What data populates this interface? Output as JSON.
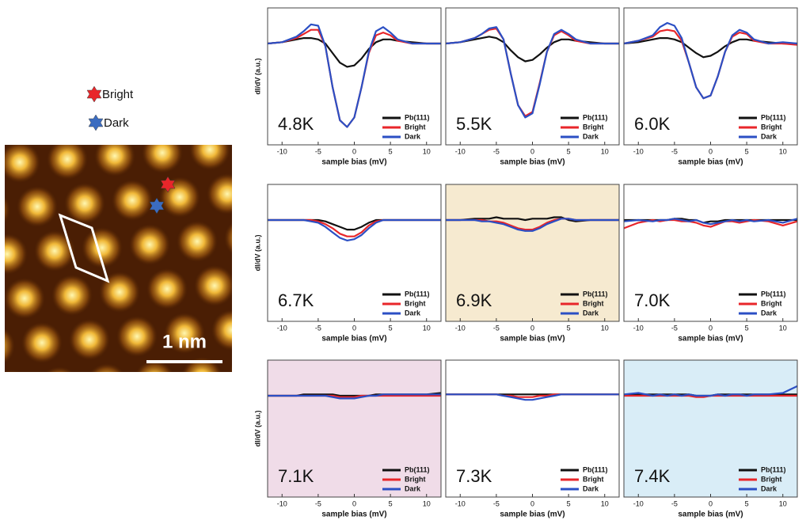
{
  "key": {
    "bright": "Bright",
    "dark": "Dark"
  },
  "image": {
    "scale_bar": "1 nm"
  },
  "chart_data": [
    {
      "type": "line",
      "title": "4.8K",
      "xlabel": "sample bias (mV)",
      "ylabel": "dI/dV (a.u.)",
      "background": "#ffffff",
      "x": [
        -12,
        -10,
        -8,
        -7,
        -6,
        -5,
        -4,
        -3,
        -2,
        -1,
        0,
        1,
        2,
        3,
        4,
        5,
        6,
        8,
        10,
        12
      ],
      "xlim": [
        -12,
        12
      ],
      "xticks": [
        -10,
        -5,
        0,
        5,
        10
      ],
      "ylim": [
        0,
        1
      ],
      "series": [
        {
          "name": "Pb(111)",
          "color": "#111111",
          "values": [
            0.74,
            0.75,
            0.77,
            0.78,
            0.78,
            0.77,
            0.74,
            0.67,
            0.6,
            0.57,
            0.58,
            0.63,
            0.7,
            0.75,
            0.77,
            0.77,
            0.76,
            0.75,
            0.74,
            0.74
          ]
        },
        {
          "name": "Bright",
          "color": "#e8262a",
          "values": [
            0.74,
            0.75,
            0.78,
            0.81,
            0.84,
            0.84,
            0.72,
            0.42,
            0.18,
            0.13,
            0.2,
            0.42,
            0.67,
            0.8,
            0.82,
            0.8,
            0.76,
            0.74,
            0.74,
            0.74
          ]
        },
        {
          "name": "Dark",
          "color": "#2b4fc4",
          "values": [
            0.74,
            0.75,
            0.79,
            0.83,
            0.88,
            0.87,
            0.72,
            0.42,
            0.18,
            0.13,
            0.2,
            0.42,
            0.68,
            0.83,
            0.86,
            0.82,
            0.77,
            0.74,
            0.74,
            0.74
          ]
        }
      ]
    },
    {
      "type": "line",
      "title": "5.5K",
      "xlabel": "sample bias (mV)",
      "background": "#ffffff",
      "x": [
        -12,
        -10,
        -8,
        -7,
        -6,
        -5,
        -4,
        -3,
        -2,
        -1,
        0,
        1,
        2,
        3,
        4,
        5,
        6,
        8,
        10,
        12
      ],
      "xlim": [
        -12,
        12
      ],
      "xticks": [
        -10,
        -5,
        0,
        5,
        10
      ],
      "ylim": [
        0,
        1
      ],
      "series": [
        {
          "name": "Pb(111)",
          "color": "#111111",
          "values": [
            0.74,
            0.75,
            0.77,
            0.78,
            0.79,
            0.78,
            0.75,
            0.69,
            0.64,
            0.61,
            0.62,
            0.66,
            0.71,
            0.75,
            0.77,
            0.77,
            0.76,
            0.75,
            0.74,
            0.74
          ]
        },
        {
          "name": "Bright",
          "color": "#e8262a",
          "values": [
            0.74,
            0.75,
            0.78,
            0.81,
            0.84,
            0.85,
            0.77,
            0.52,
            0.29,
            0.21,
            0.24,
            0.45,
            0.68,
            0.8,
            0.83,
            0.8,
            0.76,
            0.74,
            0.74,
            0.74
          ]
        },
        {
          "name": "Dark",
          "color": "#2b4fc4",
          "values": [
            0.74,
            0.75,
            0.78,
            0.81,
            0.85,
            0.86,
            0.77,
            0.52,
            0.29,
            0.2,
            0.23,
            0.44,
            0.68,
            0.81,
            0.84,
            0.81,
            0.77,
            0.74,
            0.74,
            0.74
          ]
        }
      ]
    },
    {
      "type": "line",
      "title": "6.0K",
      "xlabel": "sample bias (mV)",
      "background": "#ffffff",
      "x": [
        -12,
        -10,
        -8,
        -7,
        -6,
        -5,
        -4,
        -3,
        -2,
        -1,
        0,
        1,
        2,
        3,
        4,
        5,
        6,
        8,
        10,
        12
      ],
      "xlim": [
        -12,
        12
      ],
      "xticks": [
        -10,
        -5,
        0,
        5,
        10
      ],
      "ylim": [
        0,
        1
      ],
      "series": [
        {
          "name": "Pb(111)",
          "color": "#111111",
          "values": [
            0.74,
            0.75,
            0.77,
            0.78,
            0.78,
            0.77,
            0.75,
            0.71,
            0.67,
            0.64,
            0.65,
            0.68,
            0.72,
            0.75,
            0.77,
            0.77,
            0.76,
            0.75,
            0.74,
            0.74
          ]
        },
        {
          "name": "Bright",
          "color": "#e8262a",
          "values": [
            0.74,
            0.76,
            0.79,
            0.83,
            0.84,
            0.83,
            0.76,
            0.6,
            0.42,
            0.34,
            0.36,
            0.5,
            0.68,
            0.79,
            0.82,
            0.81,
            0.76,
            0.74,
            0.74,
            0.73
          ]
        },
        {
          "name": "Dark",
          "color": "#2b4fc4",
          "values": [
            0.74,
            0.76,
            0.8,
            0.86,
            0.89,
            0.87,
            0.78,
            0.6,
            0.42,
            0.34,
            0.36,
            0.5,
            0.68,
            0.8,
            0.84,
            0.82,
            0.77,
            0.74,
            0.75,
            0.74
          ]
        }
      ]
    },
    {
      "type": "line",
      "title": "6.7K",
      "xlabel": "sample bias (mV)",
      "ylabel": "dI/dV (a.u.)",
      "background": "#ffffff",
      "x": [
        -12,
        -10,
        -8,
        -7,
        -6,
        -5,
        -4,
        -3,
        -2,
        -1,
        0,
        1,
        2,
        3,
        4,
        5,
        6,
        8,
        10,
        12
      ],
      "xlim": [
        -12,
        12
      ],
      "xticks": [
        -10,
        -5,
        0,
        5,
        10
      ],
      "ylim": [
        0,
        1
      ],
      "series": [
        {
          "name": "Pb(111)",
          "color": "#111111",
          "values": [
            0.74,
            0.74,
            0.74,
            0.74,
            0.74,
            0.74,
            0.73,
            0.71,
            0.69,
            0.67,
            0.67,
            0.69,
            0.72,
            0.74,
            0.74,
            0.74,
            0.74,
            0.74,
            0.74,
            0.74
          ]
        },
        {
          "name": "Bright",
          "color": "#e8262a",
          "values": [
            0.74,
            0.74,
            0.74,
            0.74,
            0.74,
            0.73,
            0.71,
            0.68,
            0.64,
            0.62,
            0.62,
            0.65,
            0.7,
            0.73,
            0.74,
            0.74,
            0.74,
            0.74,
            0.74,
            0.74
          ]
        },
        {
          "name": "Dark",
          "color": "#2b4fc4",
          "values": [
            0.74,
            0.74,
            0.74,
            0.74,
            0.73,
            0.72,
            0.69,
            0.65,
            0.61,
            0.59,
            0.6,
            0.63,
            0.68,
            0.72,
            0.74,
            0.74,
            0.74,
            0.74,
            0.74,
            0.74
          ]
        }
      ]
    },
    {
      "type": "line",
      "title": "6.9K",
      "xlabel": "sample bias (mV)",
      "background": "#f6ead0",
      "x": [
        -12,
        -10,
        -8,
        -7,
        -6,
        -5,
        -4,
        -3,
        -2,
        -1,
        0,
        1,
        2,
        3,
        4,
        5,
        6,
        8,
        10,
        12
      ],
      "xlim": [
        -12,
        12
      ],
      "xticks": [
        -10,
        -5,
        0,
        5,
        10
      ],
      "ylim": [
        0,
        1
      ],
      "series": [
        {
          "name": "Pb(111)",
          "color": "#111111",
          "values": [
            0.74,
            0.74,
            0.75,
            0.75,
            0.75,
            0.76,
            0.75,
            0.75,
            0.75,
            0.74,
            0.75,
            0.75,
            0.75,
            0.76,
            0.76,
            0.74,
            0.73,
            0.74,
            0.74,
            0.74
          ]
        },
        {
          "name": "Bright",
          "color": "#e8262a",
          "values": [
            0.74,
            0.74,
            0.74,
            0.74,
            0.73,
            0.73,
            0.72,
            0.7,
            0.68,
            0.67,
            0.67,
            0.69,
            0.72,
            0.74,
            0.75,
            0.75,
            0.74,
            0.74,
            0.74,
            0.74
          ]
        },
        {
          "name": "Dark",
          "color": "#2b4fc4",
          "values": [
            0.74,
            0.74,
            0.74,
            0.73,
            0.73,
            0.72,
            0.71,
            0.69,
            0.67,
            0.66,
            0.66,
            0.68,
            0.71,
            0.73,
            0.75,
            0.75,
            0.74,
            0.74,
            0.74,
            0.74
          ]
        }
      ]
    },
    {
      "type": "line",
      "title": "7.0K",
      "xlabel": "sample bias (mV)",
      "background": "#ffffff",
      "x": [
        -12,
        -10,
        -8,
        -7,
        -6,
        -5,
        -4,
        -3,
        -2,
        -1,
        0,
        1,
        2,
        3,
        4,
        5,
        6,
        8,
        10,
        12
      ],
      "xlim": [
        -12,
        12
      ],
      "xticks": [
        -10,
        -5,
        0,
        5,
        10
      ],
      "ylim": [
        0,
        1
      ],
      "series": [
        {
          "name": "Pb(111)",
          "color": "#111111",
          "values": [
            0.74,
            0.74,
            0.74,
            0.74,
            0.74,
            0.75,
            0.75,
            0.74,
            0.74,
            0.72,
            0.73,
            0.73,
            0.74,
            0.74,
            0.74,
            0.74,
            0.74,
            0.74,
            0.74,
            0.74
          ]
        },
        {
          "name": "Bright",
          "color": "#e8262a",
          "values": [
            0.68,
            0.72,
            0.74,
            0.73,
            0.74,
            0.74,
            0.73,
            0.73,
            0.72,
            0.7,
            0.69,
            0.71,
            0.73,
            0.73,
            0.72,
            0.73,
            0.74,
            0.73,
            0.7,
            0.73
          ]
        },
        {
          "name": "Dark",
          "color": "#2b4fc4",
          "values": [
            0.73,
            0.74,
            0.73,
            0.74,
            0.74,
            0.75,
            0.74,
            0.73,
            0.74,
            0.72,
            0.71,
            0.72,
            0.73,
            0.74,
            0.73,
            0.74,
            0.73,
            0.74,
            0.72,
            0.75
          ]
        }
      ]
    },
    {
      "type": "line",
      "title": "7.1K",
      "xlabel": "sample bias (mV)",
      "ylabel": "dI/dV (a.u.)",
      "background": "#f0dce8",
      "x": [
        -12,
        -10,
        -8,
        -7,
        -6,
        -5,
        -4,
        -3,
        -2,
        -1,
        0,
        1,
        2,
        3,
        4,
        5,
        6,
        8,
        10,
        12
      ],
      "xlim": [
        -12,
        12
      ],
      "xticks": [
        -10,
        -5,
        0,
        5,
        10
      ],
      "ylim": [
        0,
        1
      ],
      "series": [
        {
          "name": "Pb(111)",
          "color": "#111111",
          "values": [
            0.74,
            0.74,
            0.74,
            0.75,
            0.75,
            0.75,
            0.75,
            0.75,
            0.74,
            0.74,
            0.74,
            0.74,
            0.74,
            0.75,
            0.75,
            0.75,
            0.75,
            0.75,
            0.75,
            0.76
          ]
        },
        {
          "name": "Bright",
          "color": "#e8262a",
          "values": [
            0.74,
            0.74,
            0.74,
            0.74,
            0.74,
            0.74,
            0.74,
            0.74,
            0.73,
            0.73,
            0.73,
            0.74,
            0.74,
            0.74,
            0.74,
            0.74,
            0.74,
            0.74,
            0.74,
            0.74
          ]
        },
        {
          "name": "Dark",
          "color": "#2b4fc4",
          "values": [
            0.74,
            0.74,
            0.74,
            0.74,
            0.74,
            0.74,
            0.74,
            0.73,
            0.72,
            0.72,
            0.72,
            0.73,
            0.74,
            0.74,
            0.75,
            0.75,
            0.75,
            0.75,
            0.75,
            0.75
          ]
        }
      ]
    },
    {
      "type": "line",
      "title": "7.3K",
      "xlabel": "sample bias (mV)",
      "background": "#ffffff",
      "x": [
        -12,
        -10,
        -8,
        -7,
        -6,
        -5,
        -4,
        -3,
        -2,
        -1,
        0,
        1,
        2,
        3,
        4,
        5,
        6,
        8,
        10,
        12
      ],
      "xlim": [
        -12,
        12
      ],
      "xticks": [
        -10,
        -5,
        0,
        5,
        10
      ],
      "ylim": [
        0,
        1
      ],
      "series": [
        {
          "name": "Pb(111)",
          "color": "#111111",
          "values": [
            0.75,
            0.75,
            0.75,
            0.75,
            0.75,
            0.75,
            0.75,
            0.75,
            0.75,
            0.75,
            0.75,
            0.75,
            0.75,
            0.75,
            0.75,
            0.75,
            0.75,
            0.75,
            0.75,
            0.75
          ]
        },
        {
          "name": "Bright",
          "color": "#e8262a",
          "values": [
            0.75,
            0.75,
            0.75,
            0.75,
            0.75,
            0.75,
            0.74,
            0.74,
            0.73,
            0.73,
            0.73,
            0.74,
            0.74,
            0.75,
            0.75,
            0.75,
            0.75,
            0.75,
            0.75,
            0.75
          ]
        },
        {
          "name": "Dark",
          "color": "#2b4fc4",
          "values": [
            0.75,
            0.75,
            0.75,
            0.75,
            0.75,
            0.75,
            0.74,
            0.73,
            0.72,
            0.71,
            0.71,
            0.72,
            0.73,
            0.74,
            0.75,
            0.75,
            0.75,
            0.75,
            0.75,
            0.75
          ]
        }
      ]
    },
    {
      "type": "line",
      "title": "7.4K",
      "xlabel": "sample bias (mV)",
      "background": "#d9edf7",
      "x": [
        -12,
        -10,
        -8,
        -7,
        -6,
        -5,
        -4,
        -3,
        -2,
        -1,
        0,
        1,
        2,
        3,
        4,
        5,
        6,
        8,
        10,
        12
      ],
      "xlim": [
        -12,
        12
      ],
      "xticks": [
        -10,
        -5,
        0,
        5,
        10
      ],
      "ylim": [
        0,
        1
      ],
      "series": [
        {
          "name": "Pb(111)",
          "color": "#111111",
          "values": [
            0.74,
            0.75,
            0.75,
            0.75,
            0.75,
            0.75,
            0.75,
            0.75,
            0.74,
            0.74,
            0.74,
            0.75,
            0.75,
            0.75,
            0.75,
            0.75,
            0.75,
            0.75,
            0.75,
            0.75
          ]
        },
        {
          "name": "Bright",
          "color": "#e8262a",
          "values": [
            0.74,
            0.74,
            0.74,
            0.74,
            0.74,
            0.74,
            0.74,
            0.74,
            0.73,
            0.73,
            0.74,
            0.74,
            0.74,
            0.74,
            0.74,
            0.74,
            0.74,
            0.74,
            0.74,
            0.74
          ]
        },
        {
          "name": "Dark",
          "color": "#2b4fc4",
          "values": [
            0.75,
            0.76,
            0.74,
            0.75,
            0.74,
            0.75,
            0.74,
            0.75,
            0.74,
            0.74,
            0.74,
            0.75,
            0.74,
            0.75,
            0.75,
            0.74,
            0.75,
            0.75,
            0.76,
            0.81
          ]
        }
      ]
    }
  ]
}
